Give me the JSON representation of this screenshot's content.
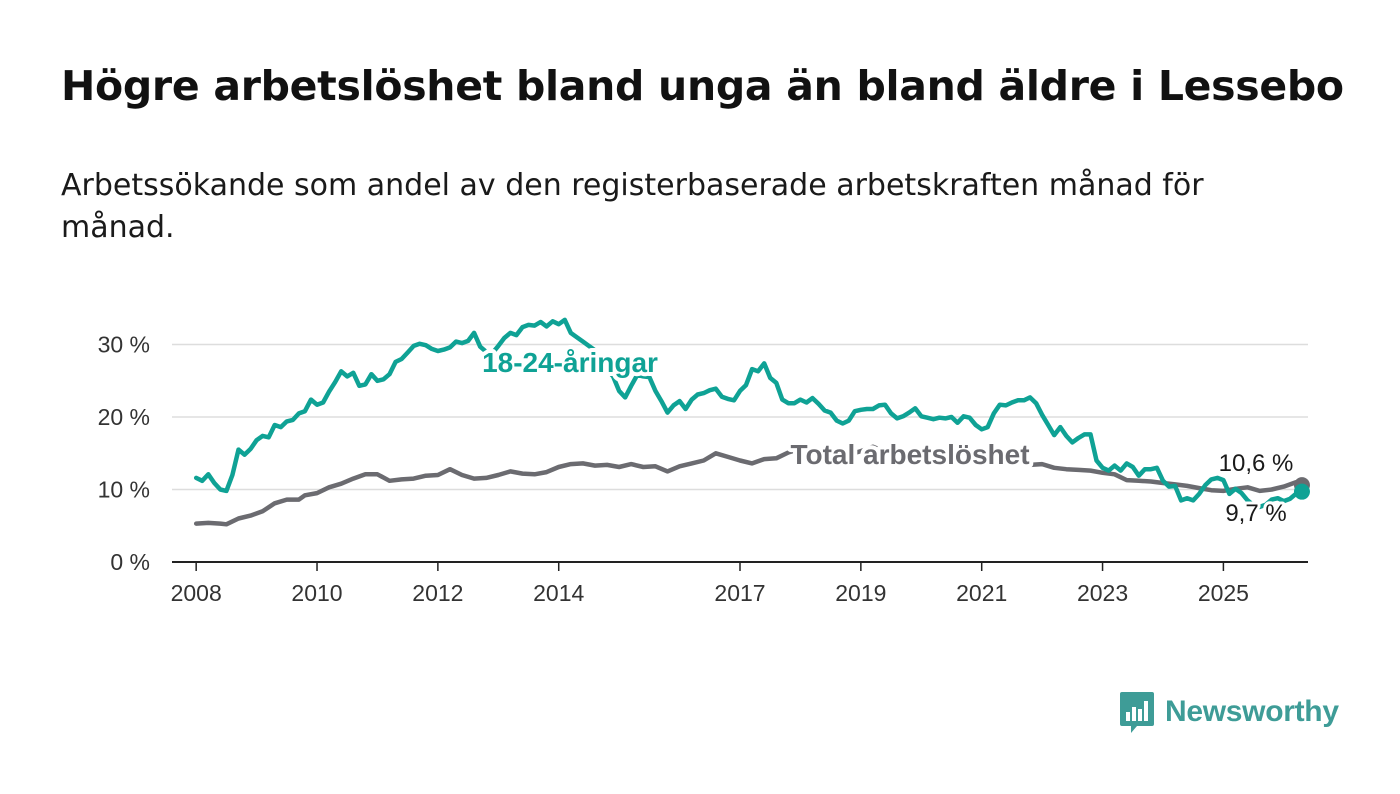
{
  "title": "Högre arbetslöshet bland unga än bland äldre i Lessebo",
  "subtitle": "Arbetssökande som andel av den registerbaserade arbetskraften månad för månad.",
  "logo": {
    "text": "Newsworthy",
    "icon": "bar-chart-bubble-icon"
  },
  "colors": {
    "youth": "#0fa295",
    "total": "#6b6b70",
    "grid": "#dddddd",
    "axis": "#222222"
  },
  "chart_data": {
    "type": "line",
    "x_unit": "year",
    "xlim": [
      2007.6,
      2026.4
    ],
    "ylim": [
      0,
      32
    ],
    "y_ticks": [
      0,
      10,
      20,
      30
    ],
    "y_tick_labels": [
      "0 %",
      "10 %",
      "20 %",
      "30 %"
    ],
    "x_ticks": [
      2008,
      2010,
      2012,
      2014,
      2017,
      2019,
      2021,
      2023,
      2025
    ],
    "x_tick_labels": [
      "2008",
      "2010",
      "2012",
      "2014",
      "2017",
      "2019",
      "2021",
      "2023",
      "2025"
    ],
    "grid": true,
    "series": [
      {
        "name": "18-24-åringar",
        "color": "#0fa295",
        "end_label": "9,7 %",
        "points": [
          [
            2008.0,
            11.6
          ],
          [
            2008.1,
            11.2
          ],
          [
            2008.2,
            12.1
          ],
          [
            2008.3,
            10.9
          ],
          [
            2008.4,
            10.0
          ],
          [
            2008.5,
            9.8
          ],
          [
            2008.6,
            12.0
          ],
          [
            2008.7,
            15.5
          ],
          [
            2008.8,
            14.8
          ],
          [
            2008.9,
            15.6
          ],
          [
            2009.0,
            16.8
          ],
          [
            2009.1,
            17.4
          ],
          [
            2009.2,
            17.2
          ],
          [
            2009.3,
            18.9
          ],
          [
            2009.4,
            18.6
          ],
          [
            2009.5,
            19.4
          ],
          [
            2009.6,
            19.6
          ],
          [
            2009.7,
            20.5
          ],
          [
            2009.8,
            20.8
          ],
          [
            2009.9,
            22.4
          ],
          [
            2010.0,
            21.7
          ],
          [
            2010.1,
            22.0
          ],
          [
            2010.2,
            23.5
          ],
          [
            2010.3,
            24.8
          ],
          [
            2010.4,
            26.3
          ],
          [
            2010.5,
            25.6
          ],
          [
            2010.6,
            26.1
          ],
          [
            2010.7,
            24.3
          ],
          [
            2010.8,
            24.5
          ],
          [
            2010.9,
            25.9
          ],
          [
            2011.0,
            25.0
          ],
          [
            2011.1,
            25.2
          ],
          [
            2011.2,
            25.9
          ],
          [
            2011.3,
            27.6
          ],
          [
            2011.4,
            28.0
          ],
          [
            2011.5,
            28.9
          ],
          [
            2011.6,
            29.8
          ],
          [
            2011.7,
            30.1
          ],
          [
            2011.8,
            29.9
          ],
          [
            2011.9,
            29.4
          ],
          [
            2012.0,
            29.1
          ],
          [
            2012.1,
            29.3
          ],
          [
            2012.2,
            29.6
          ],
          [
            2012.3,
            30.4
          ],
          [
            2012.4,
            30.2
          ],
          [
            2012.5,
            30.5
          ],
          [
            2012.6,
            31.6
          ],
          [
            2012.7,
            29.7
          ],
          [
            2012.8,
            29.0
          ],
          [
            2012.9,
            28.8
          ],
          [
            2013.0,
            29.8
          ],
          [
            2013.1,
            30.9
          ],
          [
            2013.2,
            31.6
          ],
          [
            2013.3,
            31.3
          ],
          [
            2013.4,
            32.4
          ],
          [
            2013.5,
            32.7
          ],
          [
            2013.6,
            32.6
          ],
          [
            2013.7,
            33.1
          ],
          [
            2013.8,
            32.5
          ],
          [
            2013.9,
            33.2
          ],
          [
            2014.0,
            32.8
          ],
          [
            2014.1,
            33.4
          ],
          [
            2014.2,
            31.6
          ],
          [
            2014.3,
            31.0
          ],
          [
            2014.4,
            30.4
          ],
          [
            2014.5,
            29.8
          ],
          [
            2014.6,
            29.2
          ],
          [
            2014.7,
            27.5
          ],
          [
            2014.8,
            26.5
          ],
          [
            2014.9,
            25.6
          ],
          [
            2015.0,
            23.6
          ],
          [
            2015.1,
            22.7
          ],
          [
            2015.2,
            24.3
          ],
          [
            2015.3,
            25.8
          ],
          [
            2015.4,
            25.6
          ],
          [
            2015.5,
            25.5
          ],
          [
            2015.6,
            23.6
          ],
          [
            2015.7,
            22.2
          ],
          [
            2015.8,
            20.6
          ],
          [
            2015.9,
            21.6
          ],
          [
            2016.0,
            22.2
          ],
          [
            2016.1,
            21.1
          ],
          [
            2016.2,
            22.4
          ],
          [
            2016.3,
            23.1
          ],
          [
            2016.4,
            23.3
          ],
          [
            2016.5,
            23.7
          ],
          [
            2016.6,
            23.9
          ],
          [
            2016.7,
            22.8
          ],
          [
            2016.8,
            22.5
          ],
          [
            2016.9,
            22.3
          ],
          [
            2017.0,
            23.6
          ],
          [
            2017.1,
            24.4
          ],
          [
            2017.2,
            26.6
          ],
          [
            2017.3,
            26.3
          ],
          [
            2017.4,
            27.4
          ],
          [
            2017.5,
            25.4
          ],
          [
            2017.6,
            24.7
          ],
          [
            2017.7,
            22.4
          ],
          [
            2017.8,
            21.9
          ],
          [
            2017.9,
            21.9
          ],
          [
            2018.0,
            22.4
          ],
          [
            2018.1,
            22.0
          ],
          [
            2018.2,
            22.6
          ],
          [
            2018.3,
            21.8
          ],
          [
            2018.4,
            20.9
          ],
          [
            2018.5,
            20.6
          ],
          [
            2018.6,
            19.5
          ],
          [
            2018.7,
            19.1
          ],
          [
            2018.8,
            19.5
          ],
          [
            2018.9,
            20.8
          ],
          [
            2019.0,
            21.0
          ],
          [
            2019.1,
            21.1
          ],
          [
            2019.2,
            21.1
          ],
          [
            2019.3,
            21.6
          ],
          [
            2019.4,
            21.7
          ],
          [
            2019.5,
            20.5
          ],
          [
            2019.6,
            19.8
          ],
          [
            2019.7,
            20.1
          ],
          [
            2019.8,
            20.6
          ],
          [
            2019.9,
            21.2
          ],
          [
            2020.0,
            20.1
          ],
          [
            2020.1,
            19.9
          ],
          [
            2020.2,
            19.7
          ],
          [
            2020.3,
            19.9
          ],
          [
            2020.4,
            19.8
          ],
          [
            2020.5,
            20.0
          ],
          [
            2020.6,
            19.2
          ],
          [
            2020.7,
            20.1
          ],
          [
            2020.8,
            19.9
          ],
          [
            2020.9,
            18.9
          ],
          [
            2021.0,
            18.3
          ],
          [
            2021.1,
            18.6
          ],
          [
            2021.2,
            20.5
          ],
          [
            2021.3,
            21.7
          ],
          [
            2021.4,
            21.6
          ],
          [
            2021.5,
            22.0
          ],
          [
            2021.6,
            22.3
          ],
          [
            2021.7,
            22.3
          ],
          [
            2021.8,
            22.7
          ],
          [
            2021.9,
            21.9
          ],
          [
            2022.0,
            20.3
          ],
          [
            2022.1,
            18.9
          ],
          [
            2022.2,
            17.5
          ],
          [
            2022.3,
            18.6
          ],
          [
            2022.4,
            17.4
          ],
          [
            2022.5,
            16.5
          ],
          [
            2022.6,
            17.1
          ],
          [
            2022.7,
            17.6
          ],
          [
            2022.8,
            17.6
          ],
          [
            2022.9,
            14.0
          ],
          [
            2023.0,
            13.0
          ],
          [
            2023.1,
            12.6
          ],
          [
            2023.2,
            13.3
          ],
          [
            2023.3,
            12.6
          ],
          [
            2023.4,
            13.6
          ],
          [
            2023.5,
            13.1
          ],
          [
            2023.6,
            11.9
          ],
          [
            2023.7,
            12.8
          ],
          [
            2023.8,
            12.8
          ],
          [
            2023.9,
            13.0
          ],
          [
            2024.0,
            11.2
          ],
          [
            2024.1,
            10.4
          ],
          [
            2024.2,
            10.5
          ],
          [
            2024.3,
            8.5
          ],
          [
            2024.4,
            8.8
          ],
          [
            2024.5,
            8.5
          ],
          [
            2024.6,
            9.4
          ],
          [
            2024.7,
            10.6
          ],
          [
            2024.8,
            11.4
          ],
          [
            2024.9,
            11.6
          ],
          [
            2025.0,
            11.3
          ],
          [
            2025.1,
            9.4
          ],
          [
            2025.2,
            10.1
          ],
          [
            2025.3,
            9.5
          ],
          [
            2025.4,
            8.5
          ],
          [
            2025.5,
            7.8
          ],
          [
            2025.6,
            7.6
          ],
          [
            2025.7,
            7.9
          ],
          [
            2025.8,
            8.6
          ],
          [
            2025.9,
            8.8
          ],
          [
            2026.0,
            8.4
          ],
          [
            2026.1,
            8.7
          ],
          [
            2026.2,
            9.4
          ],
          [
            2026.3,
            9.7
          ]
        ]
      },
      {
        "name": "Total arbetslöshet",
        "color": "#6b6b70",
        "end_label": "10,6 %",
        "points": [
          [
            2008.0,
            5.3
          ],
          [
            2008.2,
            5.4
          ],
          [
            2008.4,
            5.3
          ],
          [
            2008.5,
            5.2
          ],
          [
            2008.7,
            6.0
          ],
          [
            2008.9,
            6.4
          ],
          [
            2009.1,
            7.0
          ],
          [
            2009.3,
            8.1
          ],
          [
            2009.5,
            8.6
          ],
          [
            2009.7,
            8.6
          ],
          [
            2009.8,
            9.2
          ],
          [
            2010.0,
            9.5
          ],
          [
            2010.2,
            10.3
          ],
          [
            2010.4,
            10.8
          ],
          [
            2010.6,
            11.5
          ],
          [
            2010.8,
            12.1
          ],
          [
            2011.0,
            12.1
          ],
          [
            2011.2,
            11.2
          ],
          [
            2011.4,
            11.4
          ],
          [
            2011.6,
            11.5
          ],
          [
            2011.8,
            11.9
          ],
          [
            2012.0,
            12.0
          ],
          [
            2012.2,
            12.8
          ],
          [
            2012.4,
            12.0
          ],
          [
            2012.6,
            11.5
          ],
          [
            2012.8,
            11.6
          ],
          [
            2013.0,
            12.0
          ],
          [
            2013.2,
            12.5
          ],
          [
            2013.4,
            12.2
          ],
          [
            2013.6,
            12.1
          ],
          [
            2013.8,
            12.4
          ],
          [
            2014.0,
            13.1
          ],
          [
            2014.2,
            13.5
          ],
          [
            2014.4,
            13.6
          ],
          [
            2014.6,
            13.3
          ],
          [
            2014.8,
            13.4
          ],
          [
            2015.0,
            13.1
          ],
          [
            2015.2,
            13.5
          ],
          [
            2015.4,
            13.1
          ],
          [
            2015.6,
            13.2
          ],
          [
            2015.8,
            12.5
          ],
          [
            2016.0,
            13.2
          ],
          [
            2016.2,
            13.6
          ],
          [
            2016.4,
            14.0
          ],
          [
            2016.6,
            15.0
          ],
          [
            2016.8,
            14.5
          ],
          [
            2017.0,
            14.0
          ],
          [
            2017.2,
            13.6
          ],
          [
            2017.4,
            14.2
          ],
          [
            2017.6,
            14.3
          ],
          [
            2017.8,
            15.1
          ],
          [
            2018.0,
            15.6
          ],
          [
            2018.2,
            15.3
          ],
          [
            2018.4,
            14.5
          ],
          [
            2018.6,
            14.5
          ],
          [
            2018.8,
            14.8
          ],
          [
            2019.0,
            15.3
          ],
          [
            2019.2,
            15.9
          ],
          [
            2019.4,
            15.2
          ],
          [
            2019.6,
            14.8
          ],
          [
            2019.8,
            14.5
          ],
          [
            2020.0,
            14.0
          ],
          [
            2020.2,
            14.0
          ],
          [
            2020.4,
            14.1
          ],
          [
            2020.6,
            14.0
          ],
          [
            2020.8,
            13.9
          ],
          [
            2021.0,
            13.8
          ],
          [
            2021.2,
            14.0
          ],
          [
            2021.4,
            14.1
          ],
          [
            2021.6,
            13.9
          ],
          [
            2021.8,
            13.4
          ],
          [
            2022.0,
            13.5
          ],
          [
            2022.2,
            13.0
          ],
          [
            2022.4,
            12.8
          ],
          [
            2022.6,
            12.7
          ],
          [
            2022.8,
            12.6
          ],
          [
            2023.0,
            12.3
          ],
          [
            2023.2,
            12.1
          ],
          [
            2023.4,
            11.3
          ],
          [
            2023.6,
            11.2
          ],
          [
            2023.8,
            11.1
          ],
          [
            2024.0,
            10.9
          ],
          [
            2024.2,
            10.7
          ],
          [
            2024.4,
            10.5
          ],
          [
            2024.6,
            10.2
          ],
          [
            2024.8,
            9.9
          ],
          [
            2025.0,
            9.8
          ],
          [
            2025.2,
            10.1
          ],
          [
            2025.4,
            10.3
          ],
          [
            2025.6,
            9.8
          ],
          [
            2025.8,
            10.0
          ],
          [
            2026.0,
            10.4
          ],
          [
            2026.2,
            11.0
          ],
          [
            2026.3,
            10.6
          ]
        ]
      }
    ]
  }
}
